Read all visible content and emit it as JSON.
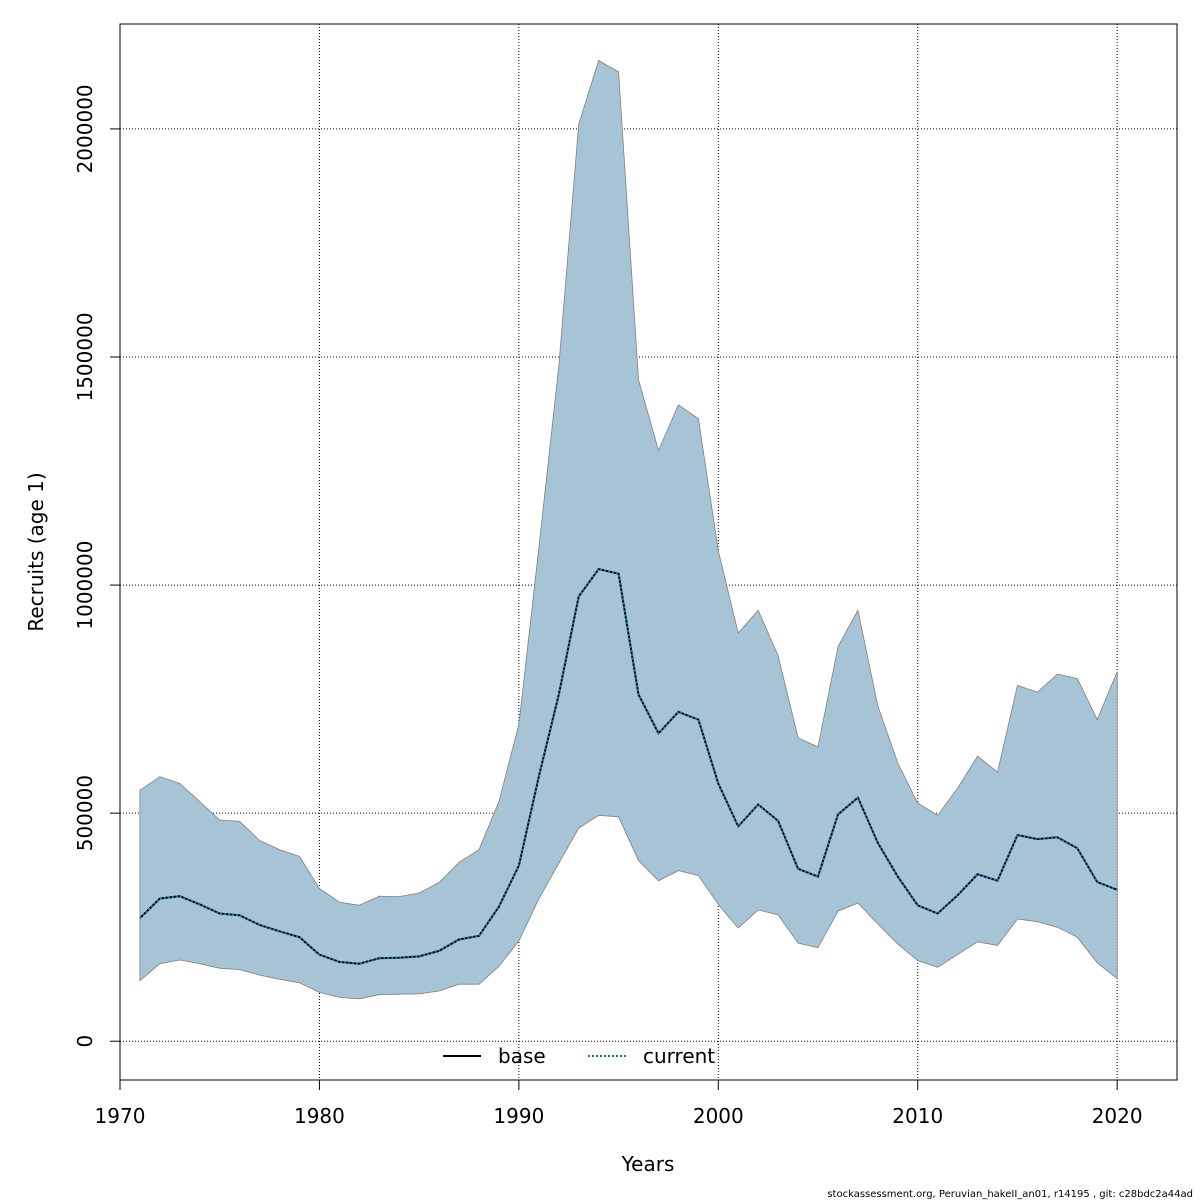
{
  "chart_data": {
    "type": "area",
    "xlabel": "Years",
    "ylabel": "Recruits (age 1)",
    "xlim": [
      1970,
      2023
    ],
    "ylim": [
      -85000,
      2230000
    ],
    "xticks": [
      1970,
      1980,
      1990,
      2000,
      2010,
      2020
    ],
    "xtick_labels": [
      "1970",
      "1980",
      "1990",
      "2000",
      "2010",
      "2020"
    ],
    "yticks": [
      0,
      500000,
      1000000,
      1500000,
      2000000
    ],
    "ytick_labels": [
      "0",
      "500000",
      "1000000",
      "1500000",
      "2000000"
    ],
    "grid": true,
    "legend_position": "bottom",
    "x": [
      1971,
      1972,
      1973,
      1974,
      1975,
      1976,
      1977,
      1978,
      1979,
      1980,
      1981,
      1982,
      1983,
      1984,
      1985,
      1986,
      1987,
      1988,
      1989,
      1990,
      1991,
      1992,
      1993,
      1994,
      1995,
      1996,
      1997,
      1998,
      1999,
      2000,
      2001,
      2002,
      2003,
      2004,
      2005,
      2006,
      2007,
      2008,
      2009,
      2010,
      2011,
      2012,
      2013,
      2014,
      2015,
      2016,
      2017,
      2018,
      2019,
      2020
    ],
    "ci_upper": [
      550000,
      580000,
      565000,
      525000,
      485000,
      482000,
      440000,
      420000,
      405000,
      335000,
      305000,
      298000,
      318000,
      317000,
      325000,
      348000,
      392000,
      420000,
      525000,
      695000,
      1080000,
      1480000,
      2010000,
      2150000,
      2125000,
      1450000,
      1295000,
      1395000,
      1365000,
      1075000,
      895000,
      945000,
      845000,
      665000,
      645000,
      865000,
      945000,
      735000,
      610000,
      522000,
      495000,
      555000,
      625000,
      590000,
      780000,
      765000,
      805000,
      795000,
      705000,
      810000
    ],
    "ci_lower": [
      133000,
      170000,
      178000,
      170000,
      160000,
      157000,
      145000,
      136000,
      128000,
      107000,
      96000,
      93000,
      102000,
      103000,
      104000,
      110000,
      125000,
      125000,
      164000,
      220000,
      312000,
      390000,
      467000,
      495000,
      492000,
      396000,
      352000,
      374000,
      363000,
      300000,
      248000,
      288000,
      277000,
      215000,
      205000,
      285000,
      303000,
      257000,
      213000,
      177000,
      162000,
      190000,
      218000,
      210000,
      268000,
      262000,
      250000,
      228000,
      172000,
      137000
    ],
    "series": [
      {
        "name": "base",
        "line_style": "solid",
        "color": "#000000",
        "values": [
          270000,
          313000,
          318000,
          300000,
          280000,
          276000,
          255000,
          241000,
          228000,
          190000,
          174000,
          170000,
          182000,
          183000,
          186000,
          198000,
          223000,
          231000,
          295000,
          385000,
          580000,
          760000,
          975000,
          1035000,
          1025000,
          760000,
          675000,
          722000,
          705000,
          565000,
          471000,
          519000,
          483000,
          378000,
          361000,
          497000,
          534000,
          435000,
          361000,
          298000,
          280000,
          320000,
          366000,
          352000,
          452000,
          443000,
          447000,
          423000,
          349000,
          332000
        ]
      },
      {
        "name": "current",
        "line_style": "dotted",
        "color": "#1f78b4",
        "values": [
          270000,
          313000,
          318000,
          300000,
          280000,
          276000,
          255000,
          241000,
          228000,
          190000,
          174000,
          170000,
          182000,
          183000,
          186000,
          198000,
          223000,
          231000,
          295000,
          385000,
          580000,
          760000,
          975000,
          1035000,
          1025000,
          760000,
          675000,
          722000,
          705000,
          565000,
          471000,
          519000,
          483000,
          378000,
          361000,
          497000,
          534000,
          435000,
          361000,
          298000,
          280000,
          320000,
          366000,
          352000,
          452000,
          443000,
          447000,
          423000,
          349000,
          332000
        ]
      }
    ],
    "colors": {
      "band_fill": "#a6c4d5",
      "band_edge": "#808080",
      "grid": "#000000"
    }
  },
  "footer": {
    "caption": "stockassessment.org, Peruvian_hakeII_an01, r14195 , git: c28bdc2a44ad"
  }
}
